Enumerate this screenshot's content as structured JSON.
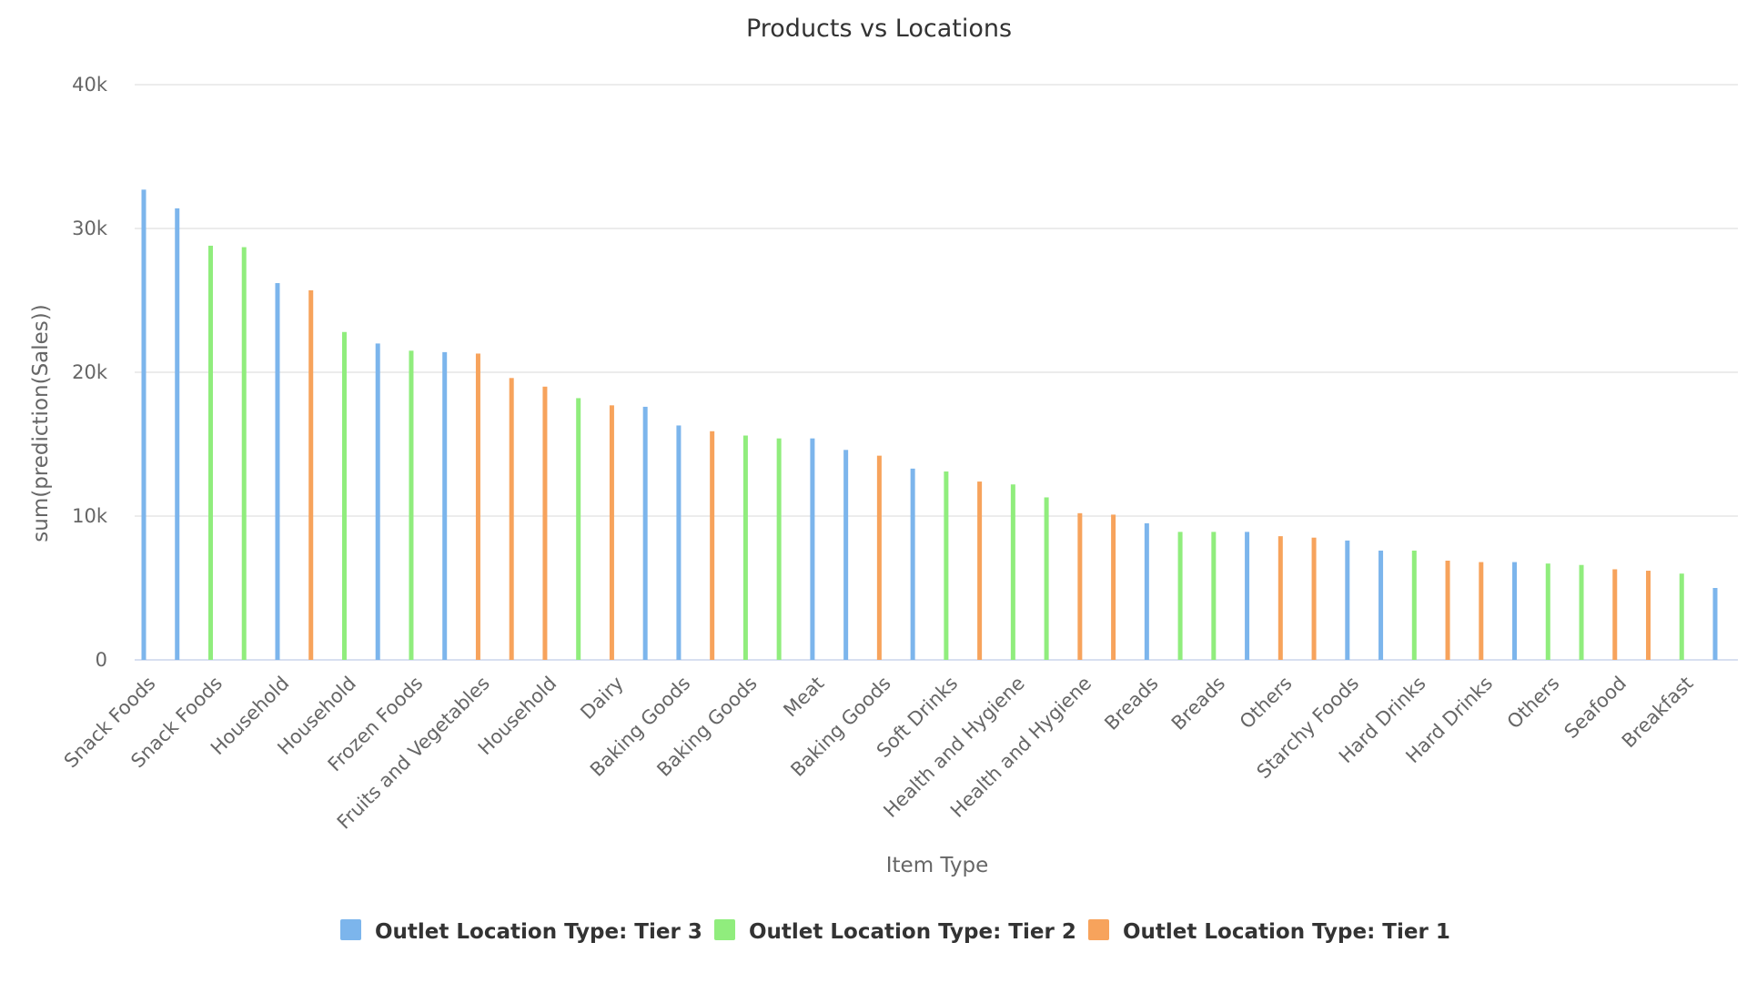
{
  "chart_data": {
    "type": "bar",
    "title": "Products vs Locations",
    "xlabel": "Item Type",
    "ylabel": "sum(prediction(Sales))",
    "ylim": [
      0,
      40000
    ],
    "yticks": [
      0,
      10000,
      20000,
      30000,
      40000
    ],
    "ytick_labels": [
      "0",
      "10k",
      "20k",
      "30k",
      "40k"
    ],
    "grid": true,
    "legend_position": "bottom",
    "series": [
      {
        "name": "Outlet Location Type: Tier 3",
        "color": "#7cb5ec"
      },
      {
        "name": "Outlet Location Type: Tier 2",
        "color": "#90ed7d"
      },
      {
        "name": "Outlet Location Type: Tier 1",
        "color": "#f7a35c"
      }
    ],
    "category_labels": [
      "Snack Foods",
      "Snack Foods",
      "Household",
      "Household",
      "Frozen Foods",
      "Fruits and Vegetables",
      "Household",
      "Dairy",
      "Baking Goods",
      "Baking Goods",
      "Meat",
      "Baking Goods",
      "Soft Drinks",
      "Health and Hygiene",
      "Health and Hygiene",
      "Breads",
      "Breads",
      "Others",
      "Starchy Foods",
      "Hard Drinks",
      "Hard Drinks",
      "Others",
      "Seafood",
      "Breakfast"
    ],
    "points": [
      {
        "category": "Snack Foods",
        "series": 0,
        "value": 32700
      },
      {
        "category": "Snack Foods",
        "series": 0,
        "value": 31400
      },
      {
        "category": "Snack Foods",
        "series": 1,
        "value": 28800
      },
      {
        "category": "Household",
        "series": 1,
        "value": 28700
      },
      {
        "category": "Household",
        "series": 0,
        "value": 26200
      },
      {
        "category": "Household",
        "series": 2,
        "value": 25700
      },
      {
        "category": "Household",
        "series": 1,
        "value": 22800
      },
      {
        "category": "Frozen Foods",
        "series": 0,
        "value": 22000
      },
      {
        "category": "Frozen Foods",
        "series": 1,
        "value": 21500
      },
      {
        "category": "Fruits and Vegetables",
        "series": 0,
        "value": 21400
      },
      {
        "category": "Fruits and Vegetables",
        "series": 2,
        "value": 21300
      },
      {
        "category": "Household",
        "series": 2,
        "value": 19600
      },
      {
        "category": "Household",
        "series": 2,
        "value": 19000
      },
      {
        "category": "Dairy",
        "series": 1,
        "value": 18200
      },
      {
        "category": "Dairy",
        "series": 2,
        "value": 17700
      },
      {
        "category": "Baking Goods",
        "series": 0,
        "value": 17600
      },
      {
        "category": "Baking Goods",
        "series": 0,
        "value": 16300
      },
      {
        "category": "Baking Goods",
        "series": 2,
        "value": 15900
      },
      {
        "category": "Baking Goods",
        "series": 1,
        "value": 15600
      },
      {
        "category": "Meat",
        "series": 1,
        "value": 15400
      },
      {
        "category": "Meat",
        "series": 0,
        "value": 15400
      },
      {
        "category": "Baking Goods",
        "series": 0,
        "value": 14600
      },
      {
        "category": "Baking Goods",
        "series": 2,
        "value": 14200
      },
      {
        "category": "Soft Drinks",
        "series": 0,
        "value": 13300
      },
      {
        "category": "Soft Drinks",
        "series": 1,
        "value": 13100
      },
      {
        "category": "Health and Hygiene",
        "series": 2,
        "value": 12400
      },
      {
        "category": "Health and Hygiene",
        "series": 1,
        "value": 12200
      },
      {
        "category": "Health and Hygiene",
        "series": 1,
        "value": 11300
      },
      {
        "category": "Health and Hygiene",
        "series": 2,
        "value": 10200
      },
      {
        "category": "Breads",
        "series": 2,
        "value": 10100
      },
      {
        "category": "Breads",
        "series": 0,
        "value": 9500
      },
      {
        "category": "Breads",
        "series": 1,
        "value": 8900
      },
      {
        "category": "Breads",
        "series": 1,
        "value": 8900
      },
      {
        "category": "Breads",
        "series": 0,
        "value": 8900
      },
      {
        "category": "Others",
        "series": 2,
        "value": 8600
      },
      {
        "category": "Starchy Foods",
        "series": 2,
        "value": 8500
      },
      {
        "category": "Starchy Foods",
        "series": 0,
        "value": 8300
      },
      {
        "category": "Hard Drinks",
        "series": 0,
        "value": 7600
      },
      {
        "category": "Hard Drinks",
        "series": 1,
        "value": 7600
      },
      {
        "category": "Hard Drinks",
        "series": 2,
        "value": 6900
      },
      {
        "category": "Hard Drinks",
        "series": 2,
        "value": 6800
      },
      {
        "category": "Others",
        "series": 0,
        "value": 6800
      },
      {
        "category": "Others",
        "series": 1,
        "value": 6700
      },
      {
        "category": "Seafood",
        "series": 1,
        "value": 6600
      },
      {
        "category": "Seafood",
        "series": 2,
        "value": 6300
      },
      {
        "category": "Breakfast",
        "series": 2,
        "value": 6200
      },
      {
        "category": "Breakfast",
        "series": 1,
        "value": 6000
      },
      {
        "category": "Breakfast",
        "series": 0,
        "value": 5000
      }
    ]
  }
}
